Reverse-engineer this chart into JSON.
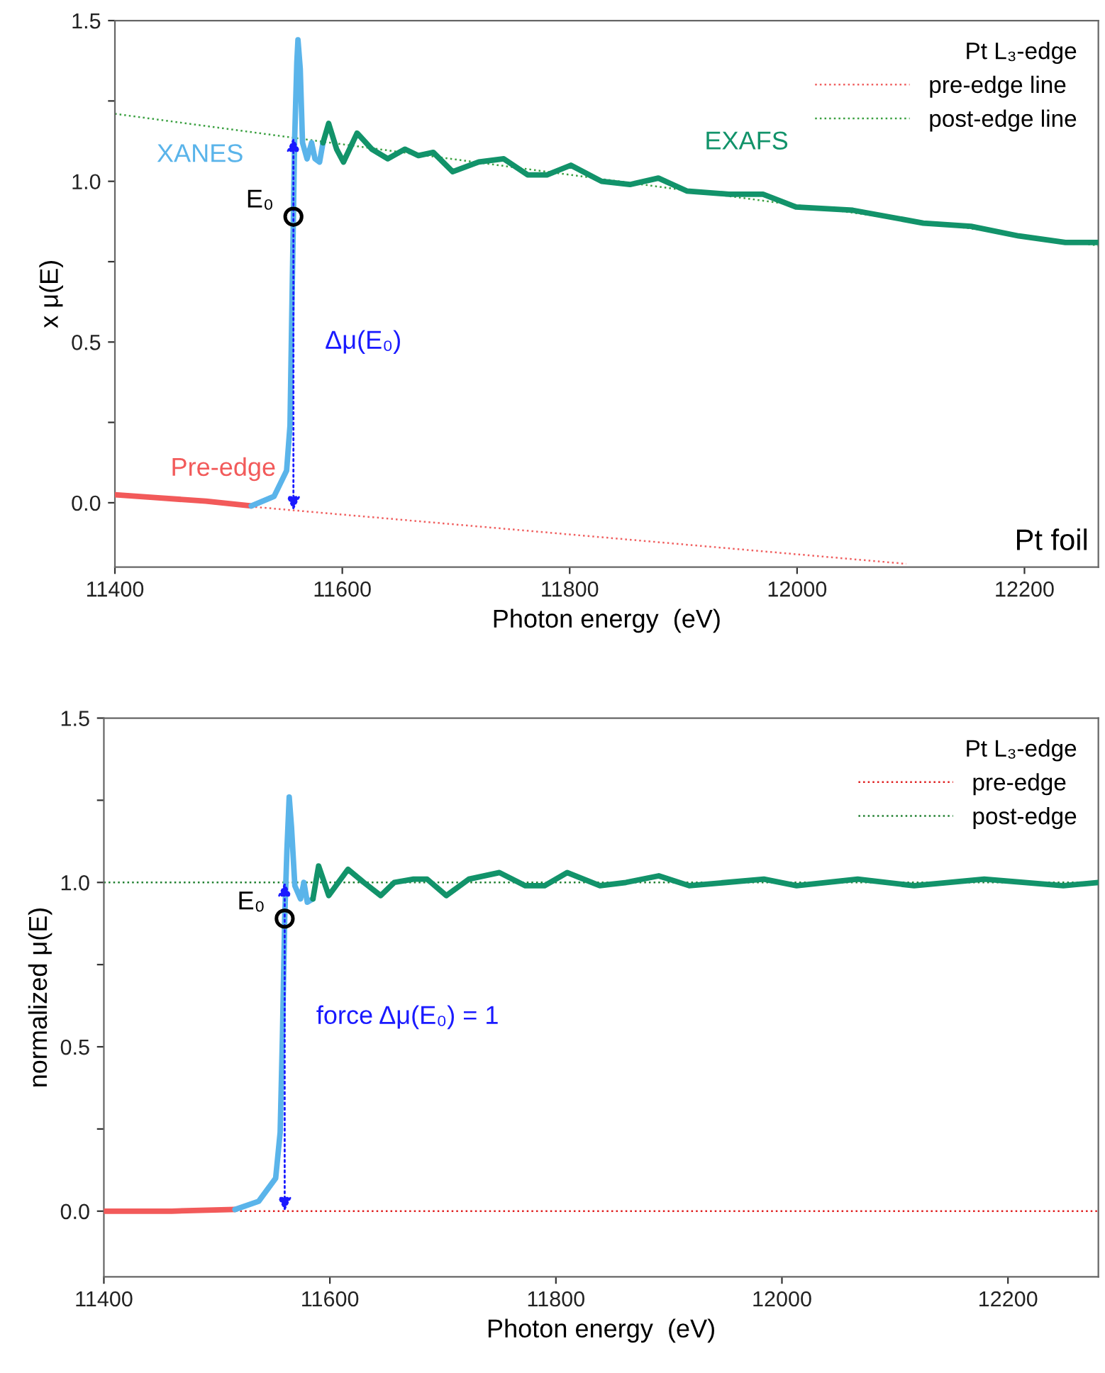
{
  "chart_data": [
    {
      "type": "line",
      "xlabel": "Photon energy  (eV)",
      "ylabel": "x μ(E)",
      "xlim": [
        11400,
        12265
      ],
      "xticks": [
        11400,
        11600,
        11800,
        12000,
        12200
      ],
      "ylim": [
        -0.2,
        1.5
      ],
      "yticks": [
        {
          "value": 0,
          "label": "0.0"
        },
        {
          "value": 0.25,
          "label": null
        },
        {
          "value": 0.5,
          "label": "0.5"
        },
        {
          "value": 0.75,
          "label": null
        },
        {
          "value": 1,
          "label": "1.0"
        },
        {
          "value": 1.25,
          "label": null
        },
        {
          "value": 1.5,
          "label": "1.5"
        }
      ],
      "legend": "top right",
      "legend_title": "Pt L₃-edge",
      "series": [
        {
          "name": "pre-edge line",
          "line_style": "dotted",
          "color": "#f06060",
          "x": [
            11400,
            12096
          ],
          "values": [
            0.025,
            -0.19
          ]
        },
        {
          "name": "post-edge line",
          "line_style": "dotted",
          "color": "#3aa040",
          "x": [
            11400,
            12265
          ],
          "values": [
            1.21,
            0.8
          ]
        },
        {
          "name": "Pre-edge",
          "line_style": "solid",
          "color": "#f25a5a",
          "x": [
            11400,
            11440,
            11480,
            11520
          ],
          "values": [
            0.025,
            0.015,
            0.005,
            -0.01
          ]
        },
        {
          "name": "XANES",
          "line_style": "solid",
          "color": "#5ab4ea",
          "x": [
            11520,
            11540,
            11551,
            11554,
            11556,
            11557,
            11558,
            11560,
            11561,
            11563,
            11565,
            11569,
            11573,
            11576,
            11580,
            11583
          ],
          "values": [
            -0.01,
            0.02,
            0.1,
            0.24,
            0.68,
            0.89,
            1.12,
            1.37,
            1.44,
            1.35,
            1.12,
            1.07,
            1.12,
            1.07,
            1.06,
            1.12
          ]
        },
        {
          "name": "EXAFS",
          "line_style": "solid",
          "color": "#12936a",
          "x": [
            11583,
            11588,
            11595,
            11601,
            11613,
            11626,
            11640,
            11655,
            11667,
            11680,
            11697,
            11720,
            11742,
            11763,
            11780,
            11801,
            11828,
            11853,
            11878,
            11903,
            11940,
            11970,
            11999,
            12049,
            12111,
            12153,
            12195,
            12236,
            12265
          ],
          "values": [
            1.12,
            1.18,
            1.1,
            1.06,
            1.15,
            1.1,
            1.07,
            1.1,
            1.08,
            1.09,
            1.03,
            1.06,
            1.07,
            1.02,
            1.02,
            1.05,
            1.0,
            0.99,
            1.01,
            0.97,
            0.96,
            0.96,
            0.92,
            0.91,
            0.87,
            0.86,
            0.83,
            0.81,
            0.81
          ]
        },
        {
          "name": "E₀",
          "type": "scatter",
          "marker": "circle",
          "color": "#000000",
          "x": [
            11557
          ],
          "values": [
            0.89
          ]
        }
      ],
      "annotations": [
        {
          "text": "Δμ(E₀)",
          "x": 11557,
          "y": 0.5
        },
        "Pt foil"
      ]
    },
    {
      "type": "line",
      "xlabel": "Photon energy  (eV)",
      "ylabel": "normalized μ(E)",
      "xlim": [
        11400,
        12280
      ],
      "xticks": [
        11400,
        11600,
        11800,
        12000,
        12200
      ],
      "ylim": [
        -0.2,
        1.5
      ],
      "yticks": [
        {
          "value": 0,
          "label": "0.0"
        },
        {
          "value": 0.25,
          "label": null
        },
        {
          "value": 0.5,
          "label": "0.5"
        },
        {
          "value": 0.75,
          "label": null
        },
        {
          "value": 1,
          "label": "1.0"
        },
        {
          "value": 1.25,
          "label": null
        },
        {
          "value": 1.5,
          "label": "1.5"
        }
      ],
      "legend": "top right",
      "legend_title": "Pt L₃-edge",
      "series": [
        {
          "name": "pre-edge",
          "line_style": "dotted",
          "color": "#e02020",
          "x": [
            11400,
            12280
          ],
          "values": [
            0,
            0
          ]
        },
        {
          "name": "post-edge",
          "line_style": "dotted",
          "color": "#208030",
          "x": [
            11400,
            12280
          ],
          "values": [
            1,
            1
          ]
        },
        {
          "line_style": "solid",
          "color": "#f25a5a",
          "x": [
            11400,
            11460,
            11516
          ],
          "values": [
            0,
            0,
            0.005
          ]
        },
        {
          "line_style": "solid",
          "color": "#5ab4ea",
          "x": [
            11516,
            11537,
            11552,
            11556,
            11558,
            11560,
            11562,
            11564,
            11566,
            11569,
            11574,
            11577,
            11580,
            11585
          ],
          "values": [
            0.005,
            0.03,
            0.1,
            0.24,
            0.53,
            0.89,
            1.1,
            1.26,
            1.17,
            0.99,
            0.95,
            1.0,
            0.94,
            0.95
          ]
        },
        {
          "line_style": "solid",
          "color": "#12936a",
          "x": [
            11585,
            11590,
            11599,
            11616,
            11630,
            11645,
            11657,
            11674,
            11686,
            11703,
            11723,
            11750,
            11773,
            11790,
            11810,
            11839,
            11862,
            11891,
            11918,
            11984,
            12013,
            12067,
            12117,
            12179,
            12249,
            12280
          ],
          "values": [
            0.95,
            1.05,
            0.96,
            1.04,
            1.0,
            0.96,
            1.0,
            1.01,
            1.01,
            0.96,
            1.01,
            1.03,
            0.99,
            0.99,
            1.03,
            0.99,
            1.0,
            1.02,
            0.99,
            1.01,
            0.99,
            1.01,
            0.99,
            1.01,
            0.99,
            1.0
          ]
        },
        {
          "name": "E₀",
          "type": "scatter",
          "marker": "circle",
          "color": "#000000",
          "x": [
            11560
          ],
          "values": [
            0.89
          ]
        }
      ],
      "annotations": [
        {
          "text": "force Δμ(E₀) = 1",
          "x": 11560,
          "y": 0.59
        }
      ]
    }
  ]
}
